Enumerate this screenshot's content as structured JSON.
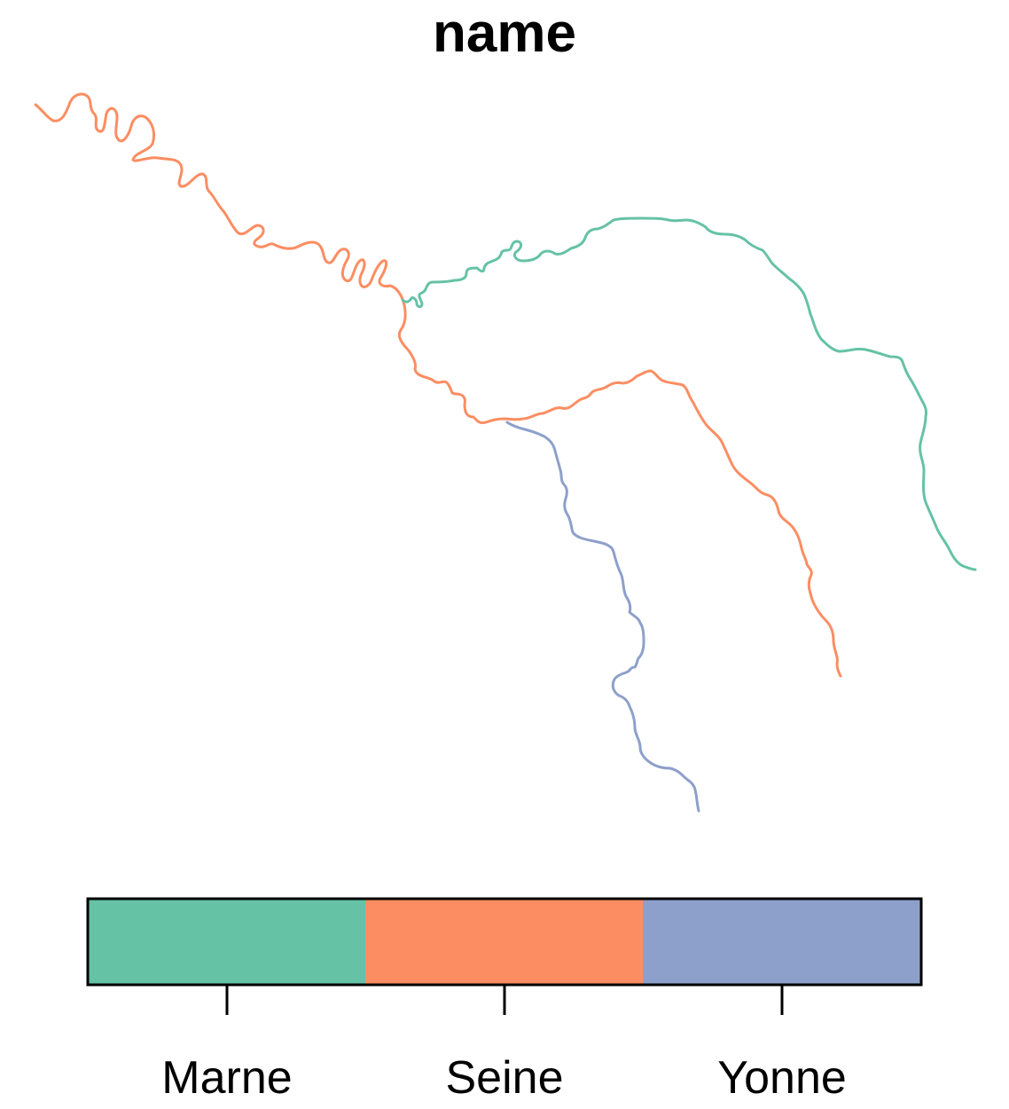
{
  "title": "name",
  "legend": {
    "items": [
      {
        "label": "Marne",
        "color": "#66c2a5"
      },
      {
        "label": "Seine",
        "color": "#fc8d62"
      },
      {
        "label": "Yonne",
        "color": "#8da0cb"
      }
    ]
  },
  "rivers": [
    {
      "name": "Marne",
      "color": "#66c2a5"
    },
    {
      "name": "Seine",
      "color": "#fc8d62"
    },
    {
      "name": "Yonne",
      "color": "#8da0cb"
    }
  ]
}
